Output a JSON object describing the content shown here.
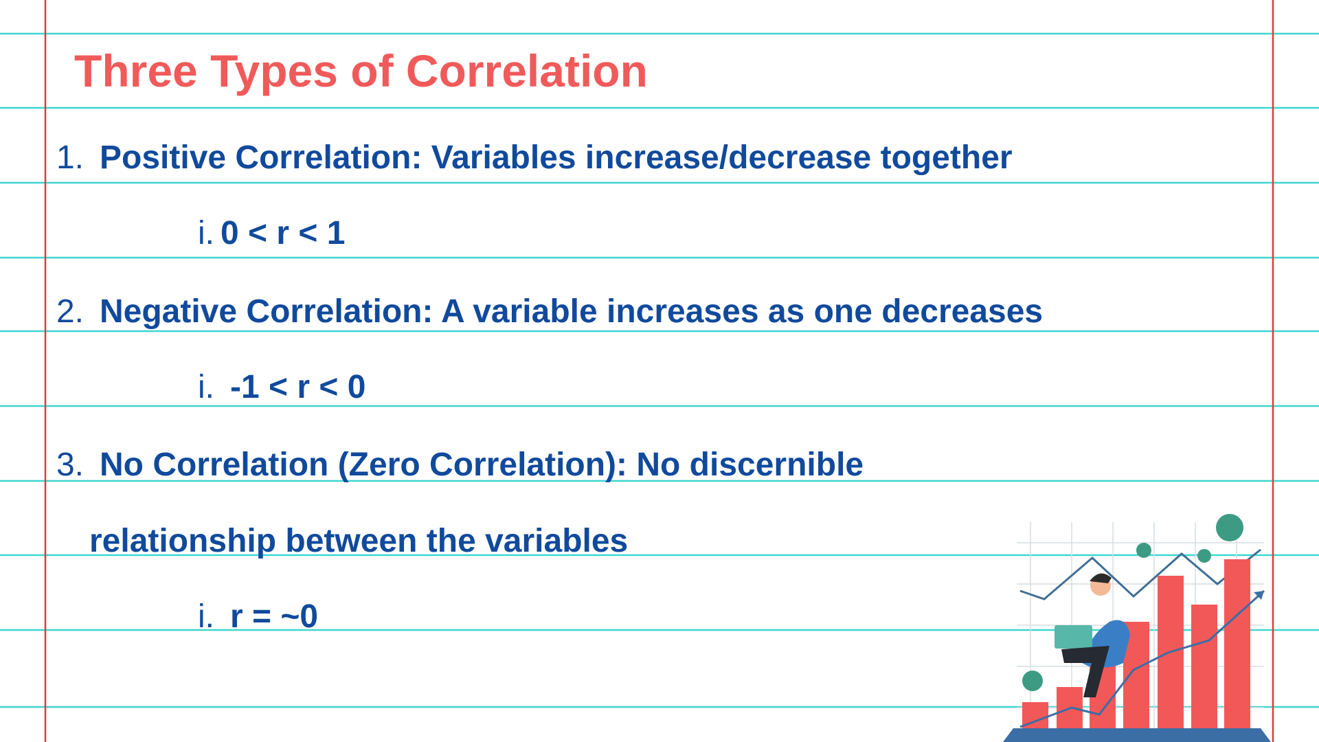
{
  "title": "Three Types of Correlation",
  "items": [
    {
      "marker": "1.",
      "lines": [
        "Positive Correlation: Variables increase/decrease together"
      ],
      "sub": {
        "marker": "i.",
        "text": "0 < r < 1"
      }
    },
    {
      "marker": "2.",
      "lines": [
        "Negative Correlation: A variable increases as one decreases"
      ],
      "sub": {
        "marker": "i.",
        "text": "-1 < r < 0"
      }
    },
    {
      "marker": "3.",
      "lines": [
        "No Correlation (Zero Correlation): No discernible",
        "relationship between the variables"
      ],
      "sub": {
        "marker": "i.",
        "text": "r = ~0"
      }
    }
  ]
}
